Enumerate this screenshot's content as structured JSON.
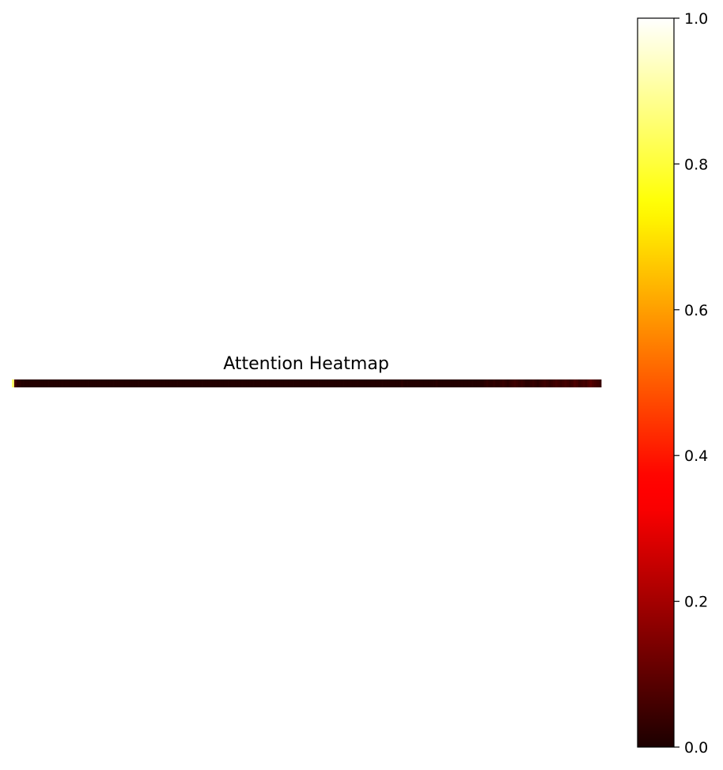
{
  "chart_data": {
    "type": "heatmap",
    "title": "Attention Heatmap",
    "colormap": "hot",
    "colorbar": {
      "vmin": 0.0,
      "vmax": 1.0,
      "ticks": [
        0.0,
        0.2,
        0.4,
        0.6,
        0.8,
        1.0
      ],
      "tick_labels": [
        "0.0",
        "0.2",
        "0.4",
        "0.6",
        "0.8",
        "1.0"
      ]
    },
    "grid": false,
    "axes_visible": false,
    "rows": 1,
    "columns": 256,
    "values": [
      [
        0.85,
        0.06,
        0.02,
        0.02,
        0.01,
        0.01,
        0.01,
        0.01,
        0.01,
        0.01,
        0.01,
        0.01,
        0.01,
        0.01,
        0.01,
        0.01,
        0.01,
        0.01,
        0.01,
        0.01,
        0.01,
        0.01,
        0.01,
        0.01,
        0.01,
        0.01,
        0.01,
        0.01,
        0.01,
        0.01,
        0.01,
        0.01,
        0.01,
        0.01,
        0.01,
        0.01,
        0.01,
        0.01,
        0.01,
        0.01,
        0.01,
        0.01,
        0.01,
        0.01,
        0.01,
        0.01,
        0.01,
        0.01,
        0.01,
        0.01,
        0.01,
        0.01,
        0.01,
        0.01,
        0.01,
        0.01,
        0.01,
        0.01,
        0.01,
        0.01,
        0.01,
        0.01,
        0.01,
        0.01,
        0.01,
        0.01,
        0.01,
        0.01,
        0.01,
        0.01,
        0.01,
        0.01,
        0.01,
        0.01,
        0.01,
        0.01,
        0.01,
        0.01,
        0.01,
        0.01,
        0.01,
        0.01,
        0.01,
        0.01,
        0.01,
        0.01,
        0.01,
        0.01,
        0.01,
        0.01,
        0.01,
        0.01,
        0.01,
        0.01,
        0.01,
        0.01,
        0.01,
        0.01,
        0.01,
        0.01,
        0.01,
        0.01,
        0.01,
        0.01,
        0.01,
        0.01,
        0.01,
        0.01,
        0.01,
        0.01,
        0.01,
        0.01,
        0.01,
        0.01,
        0.01,
        0.01,
        0.01,
        0.01,
        0.01,
        0.01,
        0.01,
        0.01,
        0.01,
        0.01,
        0.01,
        0.01,
        0.01,
        0.01,
        0.01,
        0.01,
        0.01,
        0.01,
        0.01,
        0.01,
        0.01,
        0.01,
        0.01,
        0.01,
        0.01,
        0.01,
        0.01,
        0.01,
        0.01,
        0.01,
        0.01,
        0.01,
        0.01,
        0.01,
        0.01,
        0.01,
        0.01,
        0.01,
        0.01,
        0.01,
        0.01,
        0.01,
        0.01,
        0.01,
        0.01,
        0.01,
        0.01,
        0.01,
        0.01,
        0.01,
        0.01,
        0.01,
        0.01,
        0.01,
        0.01,
        0.02,
        0.01,
        0.01,
        0.01,
        0.01,
        0.01,
        0.01,
        0.01,
        0.01,
        0.01,
        0.01,
        0.01,
        0.01,
        0.01,
        0.01,
        0.02,
        0.01,
        0.01,
        0.01,
        0.01,
        0.01,
        0.01,
        0.01,
        0.01,
        0.01,
        0.01,
        0.01,
        0.01,
        0.01,
        0.01,
        0.01,
        0.01,
        0.01,
        0.01,
        0.01,
        0.01,
        0.02,
        0.03,
        0.02,
        0.02,
        0.03,
        0.02,
        0.02,
        0.03,
        0.04,
        0.03,
        0.02,
        0.03,
        0.04,
        0.05,
        0.04,
        0.03,
        0.04,
        0.03,
        0.02,
        0.02,
        0.03,
        0.04,
        0.03,
        0.02,
        0.03,
        0.04,
        0.05,
        0.04,
        0.03,
        0.04,
        0.05,
        0.06,
        0.05,
        0.04,
        0.05,
        0.06,
        0.05,
        0.04,
        0.05,
        0.07,
        0.06,
        0.04,
        0.05,
        0.06,
        0.05,
        0.07,
        0.09,
        0.07,
        0.06,
        0.05,
        0.04
      ]
    ]
  }
}
